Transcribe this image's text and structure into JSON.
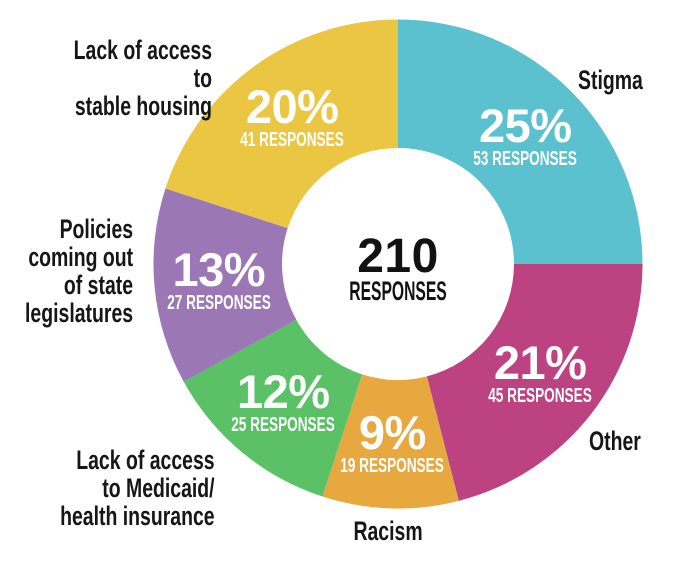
{
  "chart_data": {
    "type": "pie",
    "subtype": "donut",
    "title": "",
    "total_responses": 210,
    "center_total": {
      "value": "210",
      "unit_label": "RESPONSES"
    },
    "direction": "clockwise",
    "start_angle_deg": 0,
    "legend_position": "none",
    "slices": [
      {
        "id": "stigma",
        "label": "Stigma",
        "percent": 25,
        "percent_label": "25%",
        "responses": 53,
        "responses_label": "53 RESPONSES",
        "color": "#5BC1CE"
      },
      {
        "id": "other",
        "label": "Other",
        "percent": 21,
        "percent_label": "21%",
        "responses": 45,
        "responses_label": "45 RESPONSES",
        "color": "#BC4282"
      },
      {
        "id": "racism",
        "label": "Racism",
        "percent": 9,
        "percent_label": "9%",
        "responses": 19,
        "responses_label": "19 RESPONSES",
        "color": "#E7A83F"
      },
      {
        "id": "medicaid",
        "label": "Lack of access\nto Medicaid/\nhealth insurance",
        "percent": 12,
        "percent_label": "12%",
        "responses": 25,
        "responses_label": "25 RESPONSES",
        "color": "#5BC167"
      },
      {
        "id": "policies",
        "label": "Policies\ncoming out\nof state\nlegislatures",
        "percent": 13,
        "percent_label": "13%",
        "responses": 27,
        "responses_label": "27 RESPONSES",
        "color": "#9B77B6"
      },
      {
        "id": "housing",
        "label": "Lack of access to\nstable housing",
        "percent": 20,
        "percent_label": "20%",
        "responses": 41,
        "responses_label": "41 RESPONSES",
        "color": "#EAC643"
      }
    ]
  }
}
